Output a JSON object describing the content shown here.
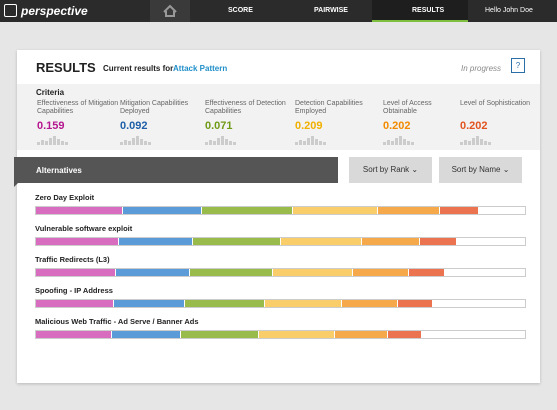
{
  "nav": {
    "logo": "perspective",
    "items": [
      "SCORE",
      "PAIRWISE",
      "RESULTS"
    ],
    "greeting": "Hello John Doe"
  },
  "header": {
    "title": "RESULTS",
    "subtitle": "Current results for",
    "subject": "Attack Pattern",
    "status": "In progress"
  },
  "criteria": {
    "title": "Criteria",
    "items": [
      {
        "label": "Effectiveness of Mitigation Capabilities",
        "value": 0.159,
        "color": "#b5178f",
        "bar_color": "#d86cbf"
      },
      {
        "label": "Mitigation Capabilities Deployed",
        "value": 0.092,
        "color": "#1e5fa8",
        "bar_color": "#5a9bd8"
      },
      {
        "label": "Effectiveness of Detection Capabilities",
        "value": 0.071,
        "color": "#6f9a17",
        "bar_color": "#98bb4c"
      },
      {
        "label": "Detection Capabilities Employed",
        "value": 0.209,
        "color": "#f0b000",
        "bar_color": "#f9ce6a"
      },
      {
        "label": "Level of Access Obtainable",
        "value": 0.202,
        "color": "#f28a00",
        "bar_color": "#f6a94b"
      },
      {
        "label": "Level of Sophistication",
        "value": 0.202,
        "color": "#e2541f",
        "bar_color": "#ec7350"
      }
    ]
  },
  "alternatives": {
    "title": "Alternatives",
    "sort_buttons": [
      "Sort by Rank",
      "Sort by Name"
    ],
    "rows": [
      {
        "name": "Zero Day Exploit",
        "segments": [
          17.7,
          16.3,
          18.5,
          17.5,
          12.6,
          8.1
        ]
      },
      {
        "name": "Vulnerable software exploit",
        "segments": [
          16.9,
          15.3,
          17.9,
          16.5,
          12.0,
          7.5
        ]
      },
      {
        "name": "Traffic Redirects (L3)",
        "segments": [
          16.3,
          15.1,
          17.1,
          16.3,
          11.4,
          7.5
        ]
      },
      {
        "name": "Spoofing - IP Address",
        "segments": [
          15.9,
          14.5,
          16.5,
          15.7,
          11.4,
          7.1
        ]
      },
      {
        "name": "Malicious Web Traffic - Ad Serve / Banner Ads",
        "segments": [
          15.5,
          14.1,
          16.1,
          15.5,
          10.8,
          6.9
        ]
      }
    ]
  }
}
